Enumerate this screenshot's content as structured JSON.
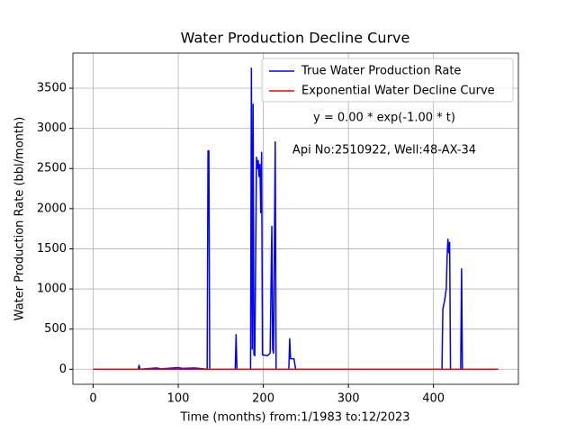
{
  "chart_data": {
    "type": "line",
    "title": "Water Production Decline Curve",
    "xlabel": "Time (months) from:1/1983 to:12/2023",
    "ylabel": "Water Production Rate (bbl/month)",
    "annotations": [
      "y = 0.00 * exp(-1.00 * t)",
      "Api No:2510922, Well:48-AX-34"
    ],
    "series": [
      {
        "name": "True Water Production Rate",
        "color": "#0000ff",
        "x": [
          0,
          53,
          54,
          55,
          75,
          80,
          100,
          105,
          120,
          134,
          135,
          136,
          137,
          167,
          168,
          169,
          185,
          186,
          187,
          188,
          189,
          190,
          192,
          193,
          194,
          195,
          196,
          197,
          198,
          199,
          205,
          208,
          210,
          211,
          212,
          214,
          215,
          230,
          231,
          232,
          236,
          238,
          410,
          411,
          413,
          415,
          416,
          417,
          418,
          419,
          420,
          432,
          433,
          434,
          476
        ],
        "values": [
          0,
          0,
          50,
          0,
          15,
          5,
          20,
          10,
          15,
          0,
          2720,
          2720,
          0,
          0,
          430,
          0,
          0,
          3750,
          250,
          3300,
          180,
          170,
          2640,
          2500,
          2600,
          2400,
          2550,
          1950,
          2700,
          180,
          170,
          200,
          1780,
          250,
          200,
          2830,
          0,
          0,
          380,
          130,
          130,
          0,
          0,
          750,
          850,
          1000,
          1400,
          1620,
          1450,
          1580,
          0,
          0,
          1250,
          0,
          0
        ]
      },
      {
        "name": "Exponential Water Decline Curve",
        "color": "#ff0000",
        "x": [
          0,
          476
        ],
        "values": [
          0,
          0
        ]
      }
    ],
    "xlim": [
      -23.8,
      499.8
    ],
    "ylim": [
      -187.5,
      3937.5
    ],
    "xticks": [
      0,
      100,
      200,
      300,
      400
    ],
    "yticks": [
      0,
      500,
      1000,
      1500,
      2000,
      2500,
      3000,
      3500
    ],
    "grid": true,
    "legend": "upper right"
  }
}
